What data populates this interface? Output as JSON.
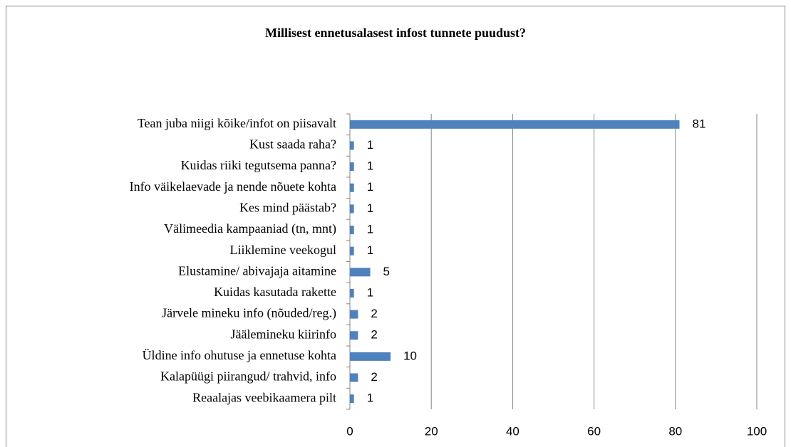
{
  "chart_data": {
    "type": "bar",
    "orientation": "horizontal",
    "title": "Millisest ennetusalasest infost tunnete puudust?",
    "categories": [
      "Tean juba niigi kõike/infot on piisavalt",
      "Kust saada raha?",
      "Kuidas riiki tegutsema panna?",
      "Info väikelaevade ja nende nõuete kohta",
      "Kes mind päästab?",
      "Välimeedia kampaaniad (tn, mnt)",
      "Liiklemine veekogul",
      "Elustamine/ abivajaja aitamine",
      "Kuidas kasutada rakette",
      "Järvele mineku info (nõuded/reg.)",
      "Jäälemineku kiirinfo",
      "Üldine info ohutuse ja ennetuse kohta",
      "Kalapüügi piirangud/ trahvid, info",
      "Reaalajas veebikaamera pilt"
    ],
    "values": [
      81,
      1,
      1,
      1,
      1,
      1,
      1,
      5,
      1,
      2,
      2,
      10,
      2,
      1
    ],
    "color": "#4f81bd",
    "xlim": [
      0,
      100
    ],
    "xticks": [
      0,
      20,
      40,
      60,
      80,
      100
    ],
    "grid": true
  }
}
